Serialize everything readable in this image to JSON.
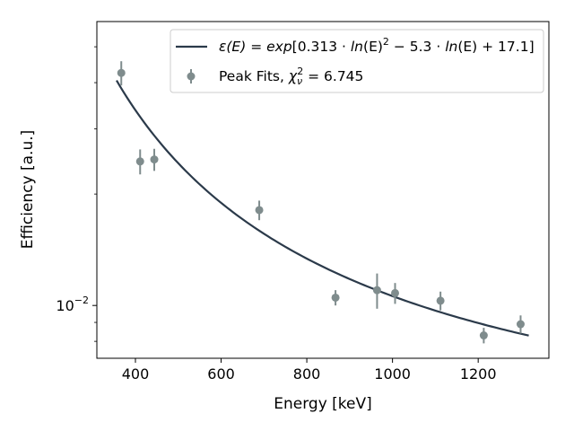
{
  "chart_data": {
    "type": "scatter",
    "xlabel": "Energy [keV]",
    "ylabel": "Efficiency [a.u.]",
    "xlim": [
      310,
      1365
    ],
    "ylim": [
      0.0072,
      0.0585
    ],
    "yscale": "log",
    "grid": false,
    "legend_position": "top-right",
    "x_ticks": [
      400,
      600,
      800,
      1000,
      1200
    ],
    "x_tick_labels": [
      "400",
      "600",
      "800",
      "1000",
      "1200"
    ],
    "y_ticks": [
      0.01
    ],
    "y_tick_labels": [
      "10",
      "−2"
    ],
    "colors": {
      "fit": "#2b3a4a",
      "points": "#7f8c8d"
    },
    "fit": {
      "name": "ε(E) = exp[0.313 · ln(E)² − 5.3 · ln(E) + 17.1]",
      "name_parts": [
        "ε(E) = ",
        "exp",
        "[0.313 · ",
        "ln",
        "(E)",
        "2",
        " − 5.3 · ",
        "ln",
        "(E) + 17.1]"
      ],
      "x_range": [
        356,
        1318
      ],
      "formula": {
        "a": 0.313,
        "b": -5.3,
        "c": 17.1
      }
    },
    "series": [
      {
        "name": "Peak Fits, χ²_ν = 6.745",
        "name_parts": [
          "Peak Fits, ",
          "χ",
          "ν",
          "2",
          " = 6.745"
        ],
        "x": [
          367,
          411,
          444,
          689,
          867,
          964,
          1006,
          1112,
          1213,
          1299
        ],
        "y": [
          0.0425,
          0.0245,
          0.0248,
          0.0181,
          0.0105,
          0.011,
          0.0108,
          0.0103,
          0.0083,
          0.0089
        ],
        "yerr": [
          0.0032,
          0.0019,
          0.0017,
          0.0011,
          0.0005,
          0.0012,
          0.0007,
          0.0006,
          0.0004,
          0.0005
        ]
      }
    ]
  }
}
